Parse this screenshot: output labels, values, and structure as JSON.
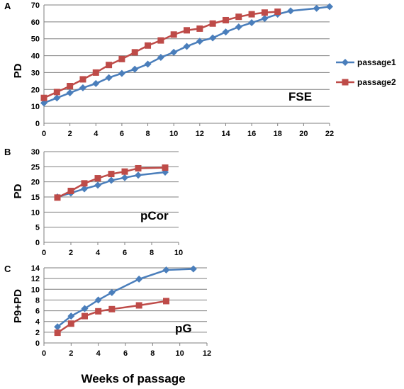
{
  "colors": {
    "passage1": "#4a7ebb",
    "passage2": "#be4b48",
    "grid": "#7f7f7f"
  },
  "legend": {
    "position": "right-of-panel-A",
    "entries": [
      "passage1",
      "passage2"
    ]
  },
  "x_axis_shared_label": "Weeks of passage",
  "chart_data": [
    {
      "panel": "A",
      "type": "line",
      "title": "",
      "annotation": "FSE",
      "xlabel": "",
      "ylabel": "PD",
      "xlim": [
        0,
        22
      ],
      "ylim": [
        0,
        70
      ],
      "xticks": [
        0,
        2,
        4,
        6,
        8,
        10,
        12,
        14,
        16,
        18,
        20,
        22
      ],
      "yticks": [
        0,
        10,
        20,
        30,
        40,
        50,
        60,
        70
      ],
      "grid": "horizontal",
      "series": [
        {
          "name": "passage1",
          "marker": "diamond",
          "x": [
            0,
            1,
            2,
            3,
            4,
            5,
            6,
            7,
            8,
            9,
            10,
            11,
            12,
            13,
            14,
            15,
            16,
            17,
            18,
            19,
            21,
            22
          ],
          "y": [
            12,
            15,
            18,
            21,
            23.5,
            27,
            29.5,
            32,
            35,
            39,
            42,
            45.5,
            48.5,
            50.5,
            54,
            57,
            59.5,
            62,
            64.5,
            66.5,
            68,
            69
          ]
        },
        {
          "name": "passage2",
          "marker": "square",
          "x": [
            0,
            1,
            2,
            3,
            4,
            5,
            6,
            7,
            8,
            9,
            10,
            11,
            12,
            13,
            14,
            15,
            16,
            17,
            18
          ],
          "y": [
            15,
            18.5,
            22,
            26,
            30,
            34.5,
            38,
            42,
            46,
            49,
            52.5,
            55,
            56,
            59,
            61,
            63,
            64.5,
            65.5,
            66
          ]
        }
      ]
    },
    {
      "panel": "B",
      "type": "line",
      "title": "",
      "annotation": "pCor",
      "xlabel": "",
      "ylabel": "PD",
      "xlim": [
        0,
        10
      ],
      "ylim": [
        0,
        30
      ],
      "xticks": [
        0,
        2,
        4,
        6,
        8,
        10
      ],
      "yticks": [
        0,
        5,
        10,
        15,
        20,
        25,
        30
      ],
      "grid": "horizontal",
      "series": [
        {
          "name": "passage1",
          "marker": "diamond",
          "x": [
            1,
            2,
            3,
            4,
            5,
            6,
            7,
            9
          ],
          "y": [
            15,
            16.3,
            17.7,
            18.9,
            20.5,
            21.4,
            22.2,
            23.2
          ]
        },
        {
          "name": "passage2",
          "marker": "square",
          "x": [
            1,
            2,
            3,
            4,
            5,
            6,
            7,
            9
          ],
          "y": [
            14.8,
            17,
            19.5,
            21.2,
            22.6,
            23.4,
            24.5,
            24.7
          ]
        }
      ]
    },
    {
      "panel": "C",
      "type": "line",
      "title": "",
      "annotation": "pG",
      "xlabel": "",
      "ylabel": "P9+PD",
      "xlim": [
        0,
        12
      ],
      "ylim": [
        0,
        14
      ],
      "xticks": [
        0,
        2,
        4,
        6,
        8,
        10,
        12
      ],
      "yticks": [
        0,
        2,
        4,
        6,
        8,
        10,
        12,
        14
      ],
      "grid": "horizontal",
      "series": [
        {
          "name": "passage1",
          "marker": "diamond",
          "x": [
            1,
            2,
            3,
            4,
            5,
            7,
            9,
            11
          ],
          "y": [
            3,
            5,
            6.4,
            8,
            9.4,
            11.9,
            13.6,
            13.8
          ]
        },
        {
          "name": "passage2",
          "marker": "square",
          "x": [
            1,
            2,
            3,
            4,
            5,
            7,
            9
          ],
          "y": [
            1.9,
            3.6,
            5,
            5.9,
            6.3,
            7,
            7.8
          ]
        }
      ]
    }
  ]
}
